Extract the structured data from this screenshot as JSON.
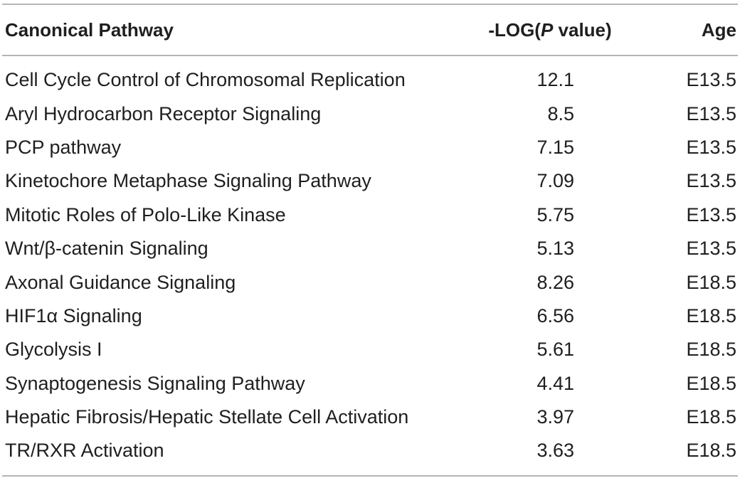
{
  "table": {
    "headers": {
      "pathway": "Canonical Pathway",
      "log_prefix": "-LOG(",
      "log_italic": "P",
      "log_suffix": " value)",
      "age": "Age"
    },
    "rows": [
      {
        "pathway": "Cell Cycle Control of Chromosomal Replication",
        "log": "12.1",
        "age": "E13.5"
      },
      {
        "pathway": "Aryl Hydrocarbon Receptor Signaling",
        "log": "8.5",
        "age": "E13.5"
      },
      {
        "pathway": "PCP pathway",
        "log": "7.15",
        "age": "E13.5"
      },
      {
        "pathway": "Kinetochore Metaphase Signaling Pathway",
        "log": "7.09",
        "age": "E13.5"
      },
      {
        "pathway": "Mitotic Roles of Polo-Like Kinase",
        "log": "5.75",
        "age": "E13.5"
      },
      {
        "pathway": "Wnt/β-catenin Signaling",
        "log": "5.13",
        "age": "E13.5"
      },
      {
        "pathway": "Axonal Guidance Signaling",
        "log": "8.26",
        "age": "E18.5"
      },
      {
        "pathway": "HIF1α Signaling",
        "log": "6.56",
        "age": "E18.5"
      },
      {
        "pathway": "Glycolysis I",
        "log": "5.61",
        "age": "E18.5"
      },
      {
        "pathway": "Synaptogenesis Signaling Pathway",
        "log": "4.41",
        "age": "E18.5"
      },
      {
        "pathway": "Hepatic Fibrosis/Hepatic Stellate Cell Activation",
        "log": "3.97",
        "age": "E18.5"
      },
      {
        "pathway": "TR/RXR Activation",
        "log": "3.63",
        "age": "E18.5"
      }
    ]
  }
}
